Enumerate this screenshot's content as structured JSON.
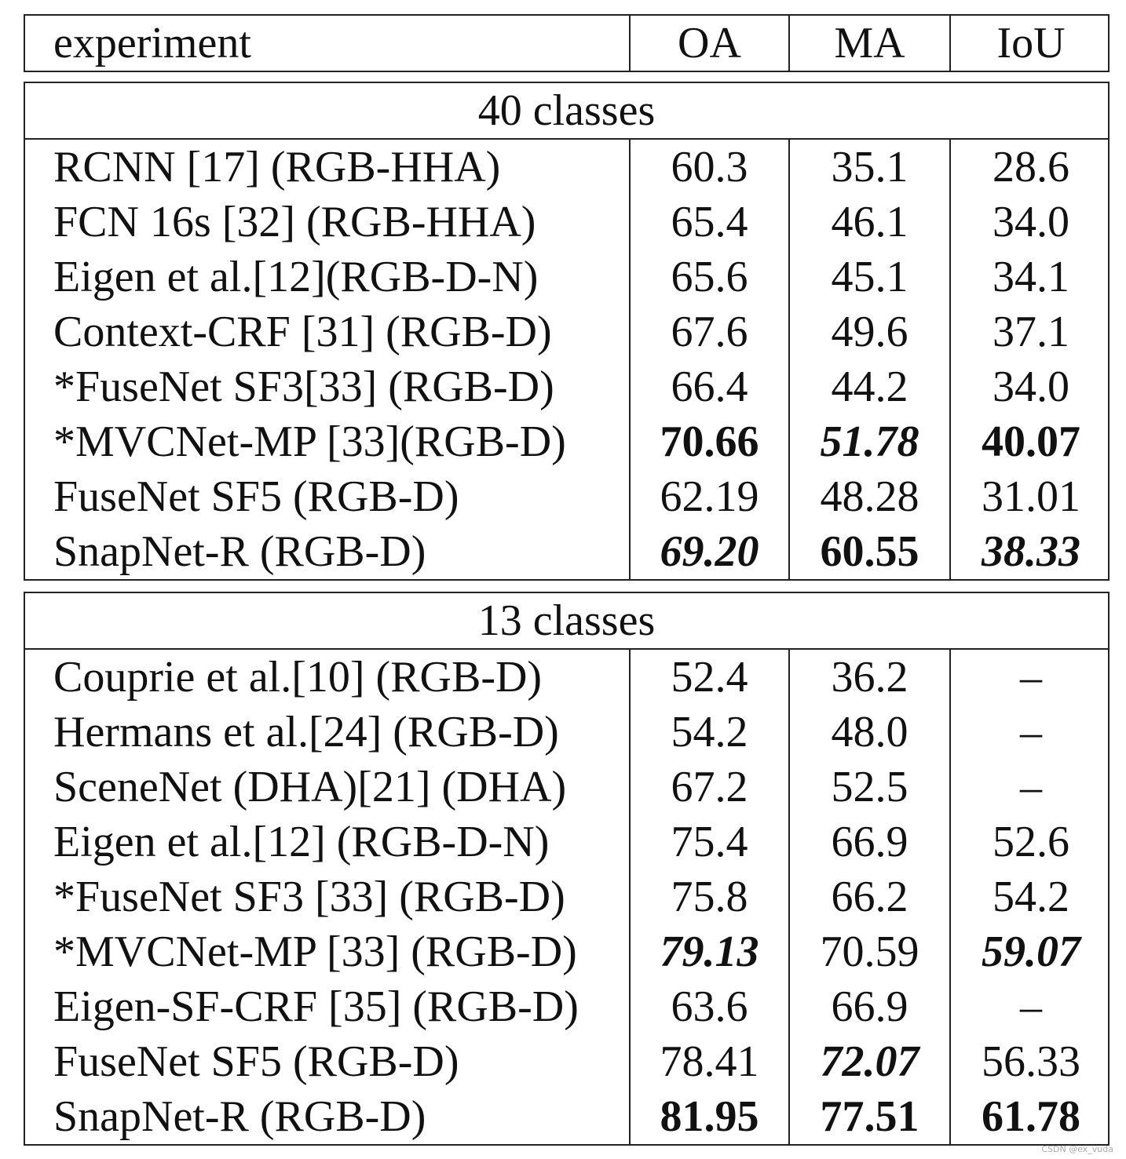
{
  "header": {
    "experiment": "experiment",
    "oa": "OA",
    "ma": "MA",
    "iou": "IoU"
  },
  "sections": [
    {
      "title": "40 classes",
      "rows": [
        {
          "name": "RCNN [17] (RGB-HHA)",
          "oa": "60.3",
          "ma": "35.1",
          "iou": "28.6"
        },
        {
          "name": "FCN 16s [32] (RGB-HHA)",
          "oa": "65.4",
          "ma": "46.1",
          "iou": "34.0"
        },
        {
          "name": "Eigen et al.[12](RGB-D-N)",
          "oa": "65.6",
          "ma": "45.1",
          "iou": "34.1"
        },
        {
          "name": "Context-CRF [31] (RGB-D)",
          "oa": "67.6",
          "ma": "49.6",
          "iou": "37.1"
        },
        {
          "name": "*FuseNet SF3[33] (RGB-D)",
          "oa": "66.4",
          "ma": "44.2",
          "iou": "34.0"
        },
        {
          "name": "*MVCNet-MP [33](RGB-D)",
          "oa": "70.66",
          "ma": "51.78",
          "iou": "40.07"
        },
        {
          "name": "FuseNet SF5 (RGB-D)",
          "oa": "62.19",
          "ma": "48.28",
          "iou": "31.01"
        },
        {
          "name": "SnapNet-R (RGB-D)",
          "oa": "69.20",
          "ma": "60.55",
          "iou": "38.33"
        }
      ]
    },
    {
      "title": "13 classes",
      "rows": [
        {
          "name": "Couprie et al.[10] (RGB-D)",
          "oa": "52.4",
          "ma": "36.2",
          "iou": "–"
        },
        {
          "name": "Hermans et al.[24] (RGB-D)",
          "oa": "54.2",
          "ma": "48.0",
          "iou": "–"
        },
        {
          "name": "SceneNet (DHA)[21] (DHA)",
          "oa": "67.2",
          "ma": "52.5",
          "iou": "–"
        },
        {
          "name": "Eigen et al.[12] (RGB-D-N)",
          "oa": "75.4",
          "ma": "66.9",
          "iou": "52.6"
        },
        {
          "name": "*FuseNet SF3 [33] (RGB-D)",
          "oa": "75.8",
          "ma": "66.2",
          "iou": "54.2"
        },
        {
          "name": "*MVCNet-MP [33] (RGB-D)",
          "oa": "79.13",
          "ma": "70.59",
          "iou": "59.07"
        },
        {
          "name": "Eigen-SF-CRF [35] (RGB-D)",
          "oa": "63.6",
          "ma": "66.9",
          "iou": "–"
        },
        {
          "name": "FuseNet SF5 (RGB-D)",
          "oa": "78.41",
          "ma": "72.07",
          "iou": "56.33"
        },
        {
          "name": "SnapNet-R (RGB-D)",
          "oa": "81.95",
          "ma": "77.51",
          "iou": "61.78"
        }
      ]
    }
  ],
  "watermark": "CSDN @ex_vuda"
}
